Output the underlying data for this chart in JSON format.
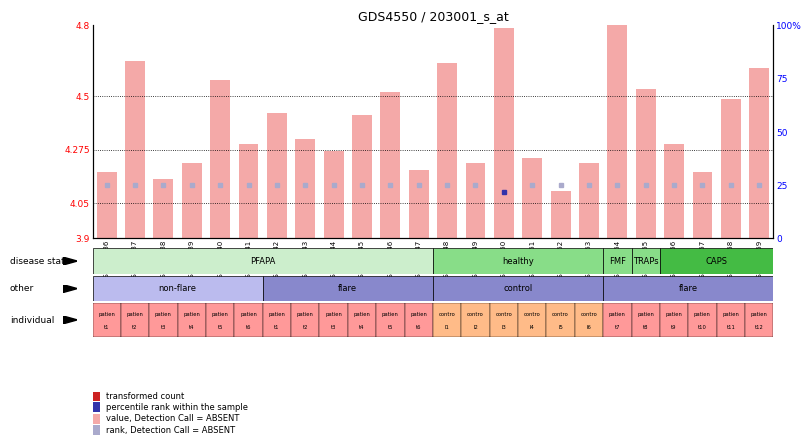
{
  "title": "GDS4550 / 203001_s_at",
  "samples": [
    "GSM442636",
    "GSM442637",
    "GSM442638",
    "GSM442639",
    "GSM442640",
    "GSM442641",
    "GSM442642",
    "GSM442643",
    "GSM442644",
    "GSM442645",
    "GSM442646",
    "GSM442647",
    "GSM442648",
    "GSM442649",
    "GSM442650",
    "GSM442651",
    "GSM442652",
    "GSM442653",
    "GSM442654",
    "GSM442655",
    "GSM442656",
    "GSM442657",
    "GSM442658",
    "GSM442659"
  ],
  "bar_values": [
    4.18,
    4.65,
    4.15,
    4.22,
    4.57,
    4.3,
    4.43,
    4.32,
    4.27,
    4.42,
    4.52,
    4.19,
    4.64,
    4.22,
    4.79,
    4.24,
    4.1,
    4.22,
    4.87,
    4.53,
    4.3,
    4.18,
    4.49,
    4.62
  ],
  "bar_absent": [
    true,
    true,
    true,
    true,
    true,
    true,
    true,
    true,
    true,
    true,
    true,
    true,
    true,
    true,
    true,
    true,
    true,
    true,
    true,
    true,
    true,
    true,
    true,
    true
  ],
  "rank_values": [
    25,
    25,
    25,
    25,
    25,
    25,
    25,
    25,
    25,
    25,
    25,
    25,
    25,
    25,
    22,
    25,
    25,
    25,
    25,
    25,
    25,
    25,
    25,
    25
  ],
  "rank_absent": [
    true,
    true,
    true,
    true,
    true,
    true,
    true,
    true,
    true,
    true,
    true,
    true,
    true,
    true,
    false,
    true,
    true,
    true,
    true,
    true,
    true,
    true,
    true,
    true
  ],
  "ylim": [
    3.9,
    4.8
  ],
  "yticks": [
    3.9,
    4.05,
    4.275,
    4.5,
    4.8
  ],
  "ytick_labels": [
    "3.9",
    "4.05",
    "4.275",
    "4.5",
    "4.8"
  ],
  "right_yticks": [
    0,
    25,
    50,
    75,
    100
  ],
  "right_ytick_labels": [
    "0",
    "25",
    "50",
    "75",
    "100%"
  ],
  "hlines": [
    4.05,
    4.275,
    4.5
  ],
  "bar_color_absent": "#F4A9A8",
  "rank_color_normal": "#3333AA",
  "rank_color_absent": "#AAAACC",
  "disease_state_groups": [
    {
      "name": "PFAPA",
      "start": 0,
      "end": 12,
      "color": "#CCEECC"
    },
    {
      "name": "healthy",
      "start": 12,
      "end": 18,
      "color": "#88DD88"
    },
    {
      "name": "FMF",
      "start": 18,
      "end": 19,
      "color": "#88DD88"
    },
    {
      "name": "TRAPs",
      "start": 19,
      "end": 20,
      "color": "#88DD88"
    },
    {
      "name": "CAPS",
      "start": 20,
      "end": 24,
      "color": "#44BB44"
    }
  ],
  "other_groups": [
    {
      "name": "non-flare",
      "start": 0,
      "end": 6,
      "color": "#BBBBEE"
    },
    {
      "name": "flare",
      "start": 6,
      "end": 12,
      "color": "#8888CC"
    },
    {
      "name": "control",
      "start": 12,
      "end": 18,
      "color": "#8888CC"
    },
    {
      "name": "flare",
      "start": 18,
      "end": 24,
      "color": "#8888CC"
    }
  ],
  "individual_items": [
    {
      "top": "patien",
      "bottom": "t1",
      "color": "#FF9999"
    },
    {
      "top": "patien",
      "bottom": "t2",
      "color": "#FF9999"
    },
    {
      "top": "patien",
      "bottom": "t3",
      "color": "#FF9999"
    },
    {
      "top": "patien",
      "bottom": "t4",
      "color": "#FF9999"
    },
    {
      "top": "patien",
      "bottom": "t5",
      "color": "#FF9999"
    },
    {
      "top": "patien",
      "bottom": "t6",
      "color": "#FF9999"
    },
    {
      "top": "patien",
      "bottom": "t1",
      "color": "#FF9999"
    },
    {
      "top": "patien",
      "bottom": "t2",
      "color": "#FF9999"
    },
    {
      "top": "patien",
      "bottom": "t3",
      "color": "#FF9999"
    },
    {
      "top": "patien",
      "bottom": "t4",
      "color": "#FF9999"
    },
    {
      "top": "patien",
      "bottom": "t5",
      "color": "#FF9999"
    },
    {
      "top": "patien",
      "bottom": "t6",
      "color": "#FF9999"
    },
    {
      "top": "contro",
      "bottom": "l1",
      "color": "#FFBB88"
    },
    {
      "top": "contro",
      "bottom": "l2",
      "color": "#FFBB88"
    },
    {
      "top": "contro",
      "bottom": "l3",
      "color": "#FFBB88"
    },
    {
      "top": "contro",
      "bottom": "l4",
      "color": "#FFBB88"
    },
    {
      "top": "contro",
      "bottom": "l5",
      "color": "#FFBB88"
    },
    {
      "top": "contro",
      "bottom": "l6",
      "color": "#FFBB88"
    },
    {
      "top": "patien",
      "bottom": "t7",
      "color": "#FF9999"
    },
    {
      "top": "patien",
      "bottom": "t8",
      "color": "#FF9999"
    },
    {
      "top": "patien",
      "bottom": "t9",
      "color": "#FF9999"
    },
    {
      "top": "patien",
      "bottom": "t10",
      "color": "#FF9999"
    },
    {
      "top": "patien",
      "bottom": "t11",
      "color": "#FF9999"
    },
    {
      "top": "patien",
      "bottom": "t12",
      "color": "#FF9999"
    }
  ],
  "legend_items": [
    {
      "color": "#CC2222",
      "label": "transformed count"
    },
    {
      "color": "#3333AA",
      "label": "percentile rank within the sample"
    },
    {
      "color": "#F4A9A8",
      "label": "value, Detection Call = ABSENT"
    },
    {
      "color": "#AAAACC",
      "label": "rank, Detection Call = ABSENT"
    }
  ],
  "row_labels": [
    "disease state",
    "other",
    "individual"
  ]
}
